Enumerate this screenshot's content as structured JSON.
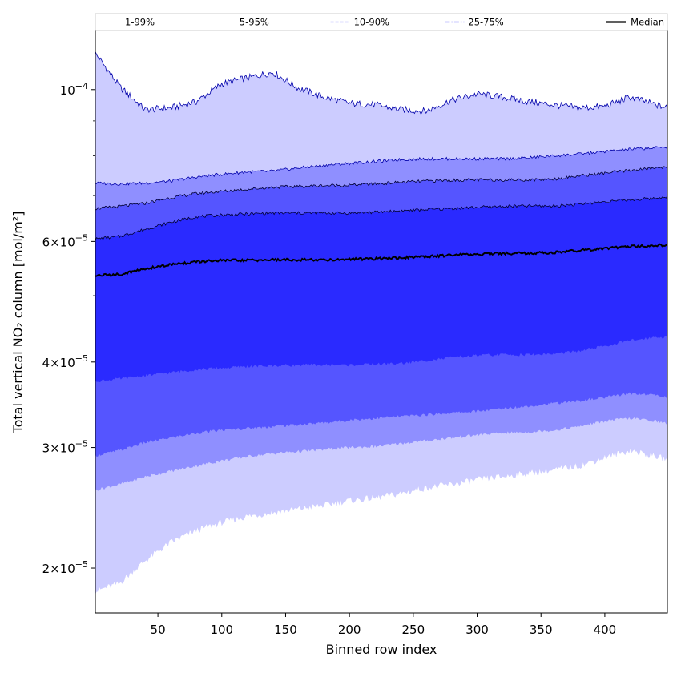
{
  "chart_data": {
    "type": "area",
    "xlabel": "Binned row index",
    "ylabel": "Total vertical NO₂ column [mol/m²]",
    "yscale": "log",
    "xlim": [
      1,
      449
    ],
    "ylim": [
      1.72e-05,
      0.000122
    ],
    "x_ticks": [
      50,
      100,
      150,
      200,
      250,
      300,
      350,
      400
    ],
    "x_tick_labels": [
      "50",
      "100",
      "150",
      "200",
      "250",
      "300",
      "350",
      "400"
    ],
    "y_ticks": [
      {
        "value": 0.0001,
        "mantissa": "10",
        "exponent": "−4",
        "form": "pow"
      },
      {
        "value": 6e-05,
        "mantissa": "6",
        "exponent": "−5",
        "form": "times"
      },
      {
        "value": 4e-05,
        "mantissa": "4",
        "exponent": "−5",
        "form": "times"
      },
      {
        "value": 3e-05,
        "mantissa": "3",
        "exponent": "−5",
        "form": "times"
      },
      {
        "value": 2e-05,
        "mantissa": "2",
        "exponent": "−5",
        "form": "times"
      }
    ],
    "x": [
      1,
      20,
      40,
      60,
      80,
      100,
      120,
      140,
      160,
      180,
      200,
      220,
      240,
      260,
      280,
      300,
      320,
      340,
      360,
      380,
      400,
      420,
      440,
      449
    ],
    "bands": [
      {
        "name": "1-99%",
        "color": "#ccccff",
        "edge": "#0000aa",
        "line_style": "solid",
        "lower": [
          1.85e-05,
          1.9e-05,
          2.05e-05,
          2.18e-05,
          2.27e-05,
          2.33e-05,
          2.38e-05,
          2.41e-05,
          2.44e-05,
          2.47e-05,
          2.51e-05,
          2.53e-05,
          2.57e-05,
          2.62e-05,
          2.65e-05,
          2.69e-05,
          2.72e-05,
          2.75e-05,
          2.78e-05,
          2.82e-05,
          2.9e-05,
          2.97e-05,
          2.91e-05,
          2.88e-05
        ],
        "upper": [
          0.000113,
          0.000101,
          9.35e-05,
          9.4e-05,
          9.6e-05,
          0.000102,
          0.000104,
          0.000106,
          0.0001005,
          9.75e-05,
          9.55e-05,
          9.5e-05,
          9.35e-05,
          9.3e-05,
          9.65e-05,
          9.85e-05,
          9.75e-05,
          9.6e-05,
          9.5e-05,
          9.4e-05,
          9.45e-05,
          9.75e-05,
          9.5e-05,
          9.4e-05
        ]
      },
      {
        "name": "5-95%",
        "color": "#8f8fff",
        "edge": "#0000aa",
        "line_style": "solid",
        "lower": [
          2.6e-05,
          2.65e-05,
          2.72e-05,
          2.77e-05,
          2.82e-05,
          2.87e-05,
          2.91e-05,
          2.94e-05,
          2.96e-05,
          2.98e-05,
          3e-05,
          3.01e-05,
          3.04e-05,
          3.07e-05,
          3.1e-05,
          3.13e-05,
          3.15e-05,
          3.16e-05,
          3.18e-05,
          3.22e-05,
          3.28e-05,
          3.31e-05,
          3.28e-05,
          3.25e-05
        ],
        "upper": [
          7.3e-05,
          7.28e-05,
          7.3e-05,
          7.35e-05,
          7.45e-05,
          7.52e-05,
          7.58e-05,
          7.6e-05,
          7.68e-05,
          7.75e-05,
          7.8e-05,
          7.85e-05,
          7.9e-05,
          7.92e-05,
          7.92e-05,
          7.92e-05,
          7.92e-05,
          7.95e-05,
          8e-05,
          8.05e-05,
          8.12e-05,
          8.18e-05,
          8.22e-05,
          8.25e-05
        ]
      },
      {
        "name": "10-90%",
        "color": "#5555ff",
        "edge": "#000033",
        "line_style": "dashed",
        "lower": [
          2.92e-05,
          2.97e-05,
          3.05e-05,
          3.1e-05,
          3.15e-05,
          3.18e-05,
          3.2e-05,
          3.22e-05,
          3.24e-05,
          3.26e-05,
          3.29e-05,
          3.31e-05,
          3.33e-05,
          3.35e-05,
          3.37e-05,
          3.39e-05,
          3.42e-05,
          3.45e-05,
          3.48e-05,
          3.51e-05,
          3.55e-05,
          3.6e-05,
          3.58e-05,
          3.55e-05
        ],
        "upper": [
          6.7e-05,
          6.75e-05,
          6.82e-05,
          6.95e-05,
          7.05e-05,
          7.1e-05,
          7.15e-05,
          7.2e-05,
          7.22e-05,
          7.24e-05,
          7.25e-05,
          7.28e-05,
          7.32e-05,
          7.35e-05,
          7.37e-05,
          7.38e-05,
          7.38e-05,
          7.38e-05,
          7.4e-05,
          7.48e-05,
          7.55e-05,
          7.62e-05,
          7.68e-05,
          7.72e-05
        ]
      },
      {
        "name": "25-75%",
        "color": "#2a2aff",
        "edge": "#000033",
        "line_style": "dashdot",
        "lower": [
          3.75e-05,
          3.78e-05,
          3.82e-05,
          3.86e-05,
          3.9e-05,
          3.92e-05,
          3.94e-05,
          3.95e-05,
          3.96e-05,
          3.96e-05,
          3.96e-05,
          3.97e-05,
          3.98e-05,
          4.02e-05,
          4.06e-05,
          4.09e-05,
          4.1e-05,
          4.1e-05,
          4.11e-05,
          4.15e-05,
          4.22e-05,
          4.3e-05,
          4.35e-05,
          4.35e-05
        ],
        "upper": [
          6.05e-05,
          6.1e-05,
          6.25e-05,
          6.4e-05,
          6.52e-05,
          6.56e-05,
          6.58e-05,
          6.6e-05,
          6.6e-05,
          6.6e-05,
          6.6e-05,
          6.62e-05,
          6.65e-05,
          6.68e-05,
          6.7e-05,
          6.73e-05,
          6.75e-05,
          6.76e-05,
          6.76e-05,
          6.8e-05,
          6.86e-05,
          6.9e-05,
          6.94e-05,
          6.98e-05
        ]
      }
    ],
    "series": [
      {
        "name": "Median",
        "color": "#000000",
        "values": [
          5.35e-05,
          5.37e-05,
          5.47e-05,
          5.55e-05,
          5.6e-05,
          5.63e-05,
          5.63e-05,
          5.64e-05,
          5.64e-05,
          5.64e-05,
          5.65e-05,
          5.66e-05,
          5.68e-05,
          5.7e-05,
          5.73e-05,
          5.75e-05,
          5.76e-05,
          5.77e-05,
          5.78e-05,
          5.82e-05,
          5.86e-05,
          5.9e-05,
          5.92e-05,
          5.92e-05
        ]
      }
    ],
    "legend": {
      "placement": "top, spanning plot width",
      "entries": [
        {
          "label": "1-99%",
          "color": "#d8d8f0",
          "style": "solid",
          "width": 0.8
        },
        {
          "label": "5-95%",
          "color": "#9a9ad0",
          "style": "solid",
          "width": 0.8
        },
        {
          "label": "10-90%",
          "color": "#7777ff",
          "style": "dashed",
          "width": 1.2
        },
        {
          "label": "25-75%",
          "color": "#2a2aff",
          "style": "dashdot",
          "width": 1.2
        },
        {
          "label": "Median",
          "color": "#000000",
          "style": "solid",
          "width": 2.2
        }
      ]
    },
    "grid": false
  }
}
